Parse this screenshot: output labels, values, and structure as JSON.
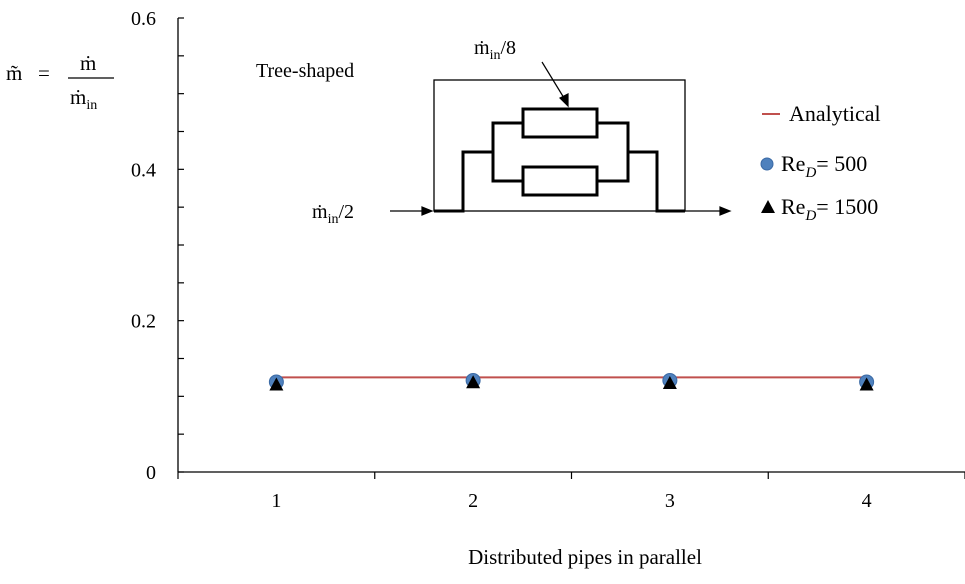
{
  "chart_data": {
    "type": "line",
    "xlabel": "Distributed pipes in parallel",
    "ylabel": {
      "lhs": "m̃",
      "eq": "=",
      "num": "ṁ",
      "den_base": "ṁ",
      "den_sub": "in"
    },
    "x": [
      1,
      2,
      3,
      4
    ],
    "xlim": [
      0.5,
      4.5
    ],
    "ylim": [
      0,
      0.6
    ],
    "xticks": [
      1,
      2,
      3,
      4
    ],
    "yticks": [
      0,
      0.2,
      0.4,
      0.6
    ],
    "ytick_labels": [
      "0",
      "0.2",
      "0.4",
      "0.6"
    ],
    "minor_y_step": 0.05,
    "grid": false,
    "legend_position": "right",
    "series": [
      {
        "name_base": "Analytical",
        "name_sub": "",
        "name_tail": "",
        "kind": "line",
        "color": "#c0504d",
        "values": [
          0.125,
          0.125,
          0.125,
          0.125
        ]
      },
      {
        "name_base": "Re",
        "name_sub": "D",
        "name_tail": "= 500",
        "kind": "marker-circle",
        "color": "#4f81bd",
        "values": [
          0.119,
          0.121,
          0.121,
          0.119
        ]
      },
      {
        "name_base": "Re",
        "name_sub": "D",
        "name_tail": "= 1500",
        "kind": "marker-triangle",
        "color": "#000000",
        "values": [
          0.117,
          0.12,
          0.119,
          0.117
        ]
      }
    ],
    "inset": {
      "title": "Tree-shaped",
      "top_label_base": "ṁ",
      "top_label_sub": "in",
      "top_label_tail": "/8",
      "left_label_base": "ṁ",
      "left_label_sub": "in",
      "left_label_tail": "/2"
    }
  }
}
